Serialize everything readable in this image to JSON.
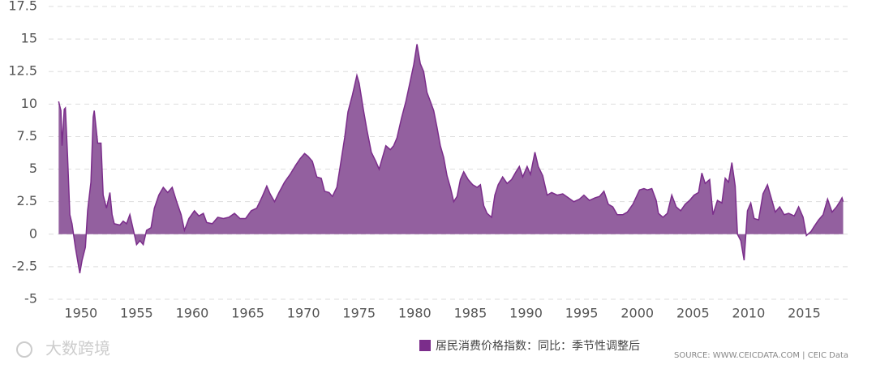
{
  "chart_data": {
    "type": "area",
    "series": [
      {
        "name": "居民消费价格指数：同比：季节性调整后",
        "color": "#7b2d8b",
        "fill": "#93609f",
        "x": [
          1948.0,
          1948.2,
          1948.3,
          1948.5,
          1948.6,
          1948.8,
          1949.0,
          1949.2,
          1949.5,
          1949.8,
          1949.9,
          1950.1,
          1950.4,
          1950.6,
          1950.9,
          1951.1,
          1951.2,
          1951.5,
          1951.8,
          1952.0,
          1952.3,
          1952.6,
          1952.8,
          1953.0,
          1953.5,
          1953.8,
          1954.1,
          1954.4,
          1954.8,
          1955.0,
          1955.3,
          1955.6,
          1955.9,
          1956.3,
          1956.6,
          1957.0,
          1957.4,
          1957.8,
          1958.2,
          1958.6,
          1959.0,
          1959.3,
          1959.7,
          1960.2,
          1960.6,
          1961.0,
          1961.3,
          1961.8,
          1962.3,
          1962.8,
          1963.3,
          1963.8,
          1964.3,
          1964.8,
          1965.3,
          1965.8,
          1966.3,
          1966.7,
          1967.0,
          1967.4,
          1967.8,
          1968.3,
          1968.8,
          1969.3,
          1969.7,
          1970.1,
          1970.4,
          1970.8,
          1971.2,
          1971.6,
          1971.9,
          1972.3,
          1972.6,
          1973.0,
          1973.3,
          1973.7,
          1974.0,
          1974.4,
          1974.8,
          1975.0,
          1975.4,
          1975.7,
          1976.1,
          1976.5,
          1976.8,
          1977.1,
          1977.4,
          1977.8,
          1978.1,
          1978.4,
          1978.8,
          1979.2,
          1979.6,
          1979.9,
          1980.2,
          1980.5,
          1980.8,
          1981.1,
          1981.4,
          1981.7,
          1982.0,
          1982.3,
          1982.6,
          1982.9,
          1983.2,
          1983.5,
          1983.8,
          1984.1,
          1984.4,
          1984.8,
          1985.2,
          1985.6,
          1985.9,
          1986.2,
          1986.5,
          1986.9,
          1987.2,
          1987.5,
          1987.9,
          1988.3,
          1988.7,
          1989.1,
          1989.4,
          1989.7,
          1990.1,
          1990.4,
          1990.8,
          1991.1,
          1991.5,
          1991.9,
          1992.3,
          1992.8,
          1993.3,
          1993.8,
          1994.3,
          1994.8,
          1995.2,
          1995.7,
          1996.2,
          1996.6,
          1997.0,
          1997.4,
          1997.8,
          1998.2,
          1998.7,
          1999.1,
          1999.6,
          2000.2,
          2000.6,
          2000.9,
          2001.3,
          2001.7,
          2001.9,
          2002.3,
          2002.7,
          2003.1,
          2003.5,
          2003.9,
          2004.3,
          2004.7,
          2005.1,
          2005.5,
          2005.8,
          2006.1,
          2006.5,
          2006.8,
          2007.2,
          2007.6,
          2007.9,
          2008.2,
          2008.5,
          2008.8,
          2009.0,
          2009.3,
          2009.6,
          2009.9,
          2010.2,
          2010.5,
          2010.9,
          2011.3,
          2011.7,
          2012.0,
          2012.4,
          2012.8,
          2013.2,
          2013.6,
          2014.1,
          2014.5,
          2014.9,
          2015.2,
          2015.6,
          2015.9,
          2016.3,
          2016.7,
          2017.1,
          2017.5,
          2017.9,
          2018.2,
          2018.4,
          2018.5
        ],
        "values": [
          10.2,
          9.5,
          6.8,
          9.6,
          9.7,
          6.0,
          1.5,
          0.8,
          -1.0,
          -2.5,
          -3.0,
          -2.0,
          -1.0,
          1.8,
          4.0,
          9.0,
          9.5,
          7.0,
          7.0,
          3.0,
          2.0,
          3.2,
          1.5,
          0.8,
          0.7,
          1.0,
          0.8,
          1.5,
          0.0,
          -0.8,
          -0.5,
          -0.8,
          0.3,
          0.5,
          2.0,
          3.0,
          3.6,
          3.2,
          3.6,
          2.5,
          1.5,
          0.3,
          1.2,
          1.8,
          1.4,
          1.6,
          0.9,
          0.8,
          1.3,
          1.2,
          1.3,
          1.6,
          1.2,
          1.2,
          1.8,
          2.0,
          2.9,
          3.7,
          3.1,
          2.5,
          3.2,
          4.0,
          4.6,
          5.3,
          5.8,
          6.2,
          6.0,
          5.6,
          4.4,
          4.3,
          3.3,
          3.2,
          2.9,
          3.6,
          5.2,
          7.4,
          9.4,
          10.7,
          12.2,
          11.6,
          9.5,
          8.0,
          6.3,
          5.6,
          5.0,
          5.9,
          6.8,
          6.5,
          6.8,
          7.4,
          8.9,
          10.2,
          11.8,
          13.0,
          14.6,
          13.1,
          12.5,
          10.9,
          10.2,
          9.5,
          8.2,
          6.8,
          5.9,
          4.5,
          3.6,
          2.5,
          2.9,
          4.2,
          4.8,
          4.2,
          3.8,
          3.6,
          3.8,
          2.2,
          1.6,
          1.3,
          3.0,
          3.8,
          4.4,
          3.9,
          4.2,
          4.8,
          5.2,
          4.4,
          5.2,
          4.6,
          6.3,
          5.2,
          4.5,
          3.0,
          3.2,
          3.0,
          3.1,
          2.8,
          2.5,
          2.7,
          3.0,
          2.6,
          2.8,
          2.9,
          3.3,
          2.3,
          2.1,
          1.5,
          1.5,
          1.7,
          2.3,
          3.4,
          3.5,
          3.4,
          3.5,
          2.6,
          1.6,
          1.3,
          1.6,
          3.0,
          2.1,
          1.8,
          2.3,
          2.6,
          3.0,
          3.2,
          4.7,
          3.9,
          4.2,
          1.5,
          2.6,
          2.4,
          4.3,
          4.0,
          5.5,
          3.7,
          0.0,
          -0.5,
          -2.0,
          1.8,
          2.4,
          1.2,
          1.1,
          3.1,
          3.8,
          2.9,
          1.7,
          2.1,
          1.5,
          1.6,
          1.4,
          2.1,
          1.3,
          -0.1,
          0.2,
          0.6,
          1.1,
          1.5,
          2.7,
          1.7,
          2.1,
          2.5,
          2.8,
          2.5
        ]
      }
    ],
    "xlim": [
      1947.1,
      2018.9
    ],
    "xticks": [
      1950,
      1955,
      1960,
      1965,
      1970,
      1975,
      1980,
      1985,
      1990,
      1995,
      2000,
      2005,
      2010,
      2015
    ],
    "ylim": [
      -5,
      17.5
    ],
    "yticks": [
      -5,
      -2.5,
      0,
      2.5,
      5,
      7.5,
      10,
      12.5,
      15,
      17.5
    ],
    "grid": true,
    "source": "SOURCE: WWW.CEICDATA.COM | CEIC Data",
    "watermark": "大数跨境"
  }
}
